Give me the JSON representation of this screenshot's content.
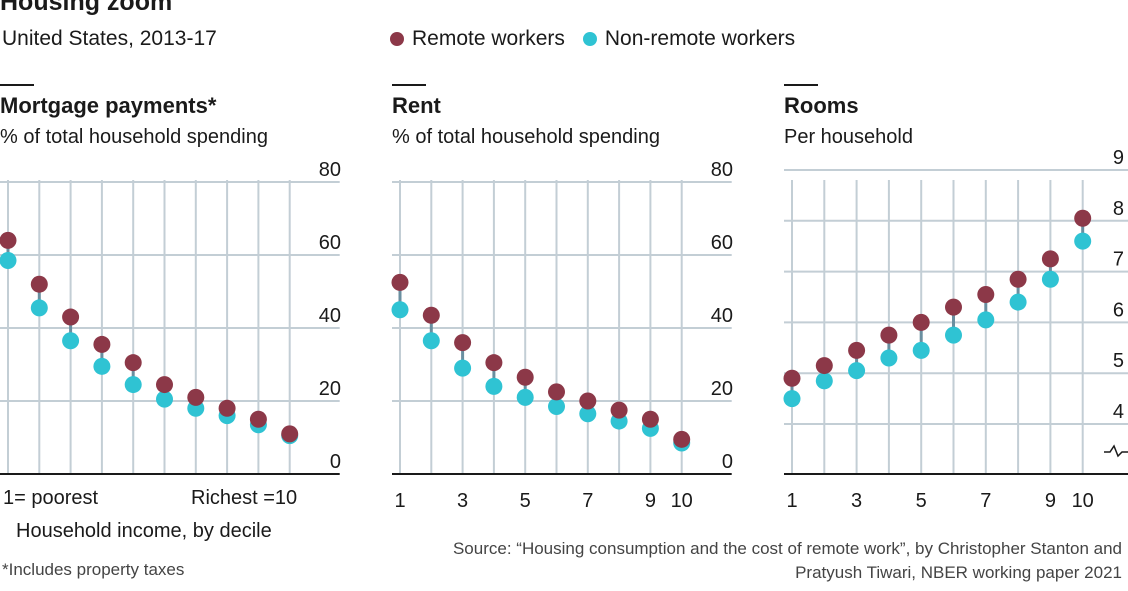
{
  "header": {
    "title": "Housing zoom",
    "subtitle": "United States, 2013-17"
  },
  "legend": {
    "remote_label": "Remote workers",
    "nonremote_label": "Non-remote workers"
  },
  "colors": {
    "remote": "#8c3848",
    "nonremote": "#2fc3d3",
    "connector": "#6a8fa0",
    "grid": "#c3ced5",
    "axis": "#1a1a1a"
  },
  "panels": [
    {
      "title": "Mortgage payments*",
      "desc": "% of total household spending"
    },
    {
      "title": "Rent",
      "desc": "% of total household spending"
    },
    {
      "title": "Rooms",
      "desc": "Per household"
    }
  ],
  "axis_notes": {
    "poorest": "1= poorest",
    "richest": "Richest =10",
    "xcaption": "Household income, by decile"
  },
  "footnote": "*Includes property taxes",
  "source": "Source: “Housing consumption and the cost of remote work”, by Christopher Stanton and Pratyush Tiwari, NBER working paper 2021",
  "chart_data": [
    {
      "type": "scatter",
      "title": "Mortgage payments*",
      "ylabel": "% of total household spending",
      "xlabel": "Household income, by decile",
      "x": [
        1,
        2,
        3,
        4,
        5,
        6,
        7,
        8,
        9,
        10
      ],
      "ylim": [
        0,
        80
      ],
      "yticks": [
        "0",
        "20",
        "40",
        "60",
        "80"
      ],
      "xticks": [],
      "series": [
        {
          "name": "Remote workers",
          "values": [
            64,
            52,
            43,
            35.5,
            30.5,
            24.5,
            21,
            18,
            15,
            11
          ]
        },
        {
          "name": "Non-remote workers",
          "values": [
            58.5,
            45.5,
            36.5,
            29.5,
            24.5,
            20.5,
            18,
            16,
            13.5,
            10.5
          ]
        }
      ]
    },
    {
      "type": "scatter",
      "title": "Rent",
      "ylabel": "% of total household spending",
      "x": [
        1,
        2,
        3,
        4,
        5,
        6,
        7,
        8,
        9,
        10
      ],
      "ylim": [
        0,
        80
      ],
      "yticks": [
        "0",
        "20",
        "40",
        "60",
        "80"
      ],
      "xticks": [
        "1",
        "3",
        "5",
        "7",
        "9",
        "10"
      ],
      "series": [
        {
          "name": "Remote workers",
          "values": [
            52.5,
            43.5,
            36,
            30.5,
            26.5,
            22.5,
            20,
            17.5,
            15,
            9.5
          ]
        },
        {
          "name": "Non-remote workers",
          "values": [
            45,
            36.5,
            29,
            24,
            21,
            18.5,
            16.5,
            14.5,
            12.5,
            8.5
          ]
        }
      ]
    },
    {
      "type": "scatter",
      "title": "Rooms",
      "ylabel": "Per household",
      "x": [
        1,
        2,
        3,
        4,
        5,
        6,
        7,
        8,
        9,
        10
      ],
      "ylim": [
        3.6,
        9
      ],
      "ybreak": true,
      "yticks": [
        "4",
        "5",
        "6",
        "7",
        "8",
        "9"
      ],
      "xticks": [
        "1",
        "3",
        "5",
        "7",
        "9",
        "10"
      ],
      "series": [
        {
          "name": "Remote workers",
          "values": [
            4.9,
            5.15,
            5.45,
            5.75,
            6,
            6.3,
            6.55,
            6.85,
            7.25,
            8.05
          ]
        },
        {
          "name": "Non-remote workers",
          "values": [
            4.5,
            4.85,
            5.05,
            5.3,
            5.45,
            5.75,
            6.05,
            6.4,
            6.85,
            7.6
          ]
        }
      ]
    }
  ]
}
